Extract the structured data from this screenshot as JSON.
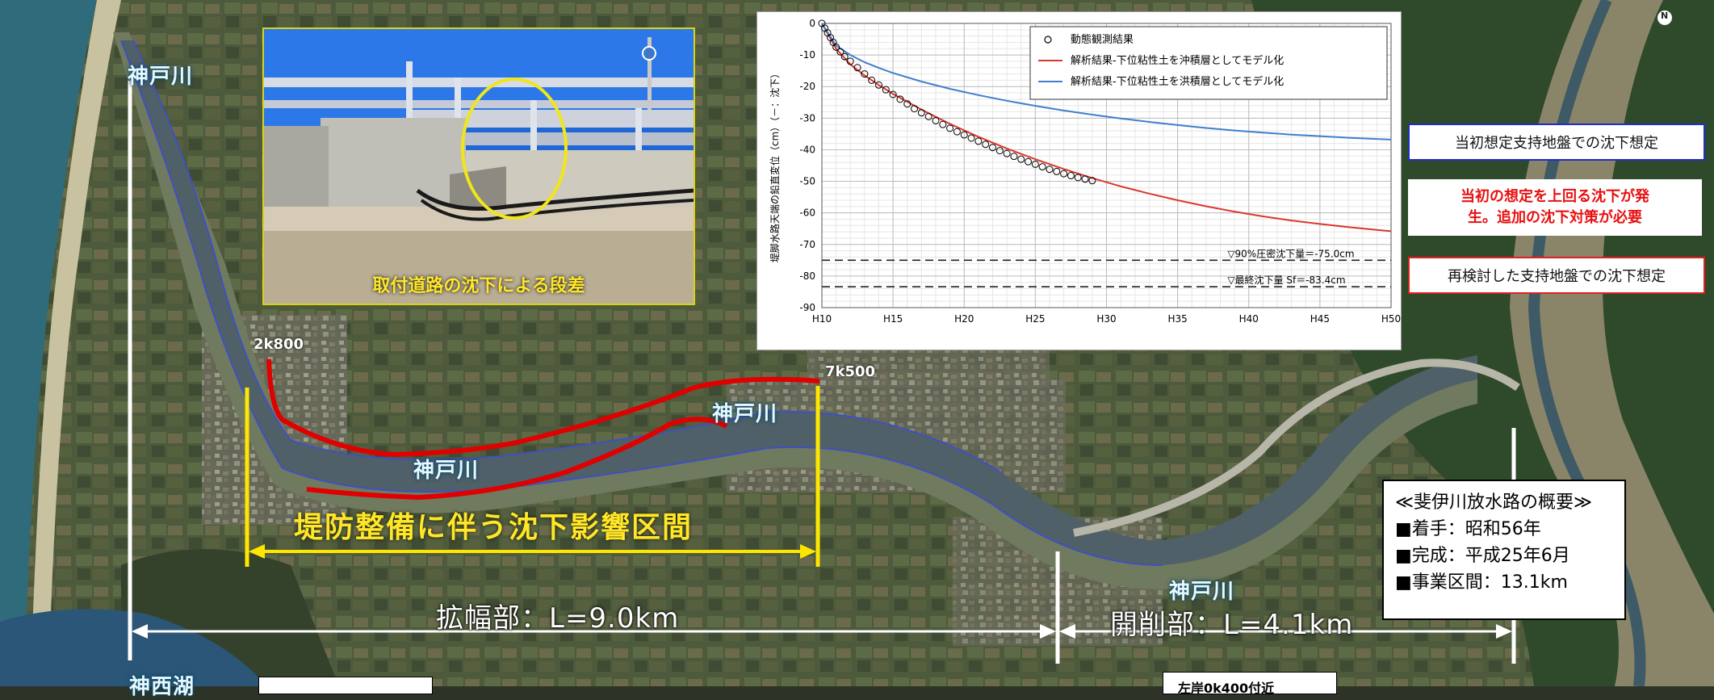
{
  "map": {
    "river_labels": [
      "神戸川",
      "神戸川",
      "神戸川",
      "神戸川"
    ],
    "lake_label": "神西湖",
    "km_start": "2k800",
    "km_end": "7k500",
    "zone_label": "堤防整備に伴う沈下影響区間",
    "widening_label": "拡幅部：L=9.0km",
    "cutting_label": "開削部：L=4.1km",
    "north_label": "N",
    "bottom_box_text": "左岸0k400付近"
  },
  "photo": {
    "caption": "取付道路の沈下による段差"
  },
  "callouts": {
    "initial": "当初想定支持地盤での沈下想定",
    "warning_line1": "当初の想定を上回る沈下が発",
    "warning_line2": "生。追加の沈下対策が必要",
    "revised": "再検討した支持地盤での沈下想定"
  },
  "overview": {
    "title": "≪斐伊川放水路の概要≫",
    "items": [
      "■着手：昭和56年",
      "■完成：平成25年6月",
      "■事業区間：13.1km"
    ]
  },
  "colors": {
    "embankment": "#e00000",
    "zone": "#ffe600",
    "observed": "#000000",
    "alluvial_model": "#d9382e",
    "diluvial_model": "#3f7fcf",
    "callout_blue": "#1f2ec8",
    "callout_red": "#e02020"
  },
  "chart_data": {
    "type": "scatter",
    "ylabel": "堤脚水路天端の鉛直変位（cm）（－：沈下）",
    "ylim": [
      -90,
      0
    ],
    "yticks": [
      0,
      -10,
      -20,
      -30,
      -40,
      -50,
      -60,
      -70,
      -80,
      -90
    ],
    "xticks": [
      "H10",
      "H15",
      "H20",
      "H25",
      "H30",
      "H35",
      "H40",
      "H45",
      "H50"
    ],
    "xlim": [
      10,
      50
    ],
    "legend": {
      "position": "top-right",
      "entries": [
        "動態観測結果",
        "解析結果-下位粘性土を沖積層としてモデル化",
        "解析結果-下位粘性土を洪積層としてモデル化"
      ]
    },
    "reference_lines": [
      {
        "label": "▽90%圧密沈下量＝-75.0cm",
        "y": -75.0
      },
      {
        "label": "▽最終沈下量 Sf＝-83.4cm",
        "y": -83.4
      }
    ],
    "series": [
      {
        "name": "動態観測結果",
        "kind": "scatter",
        "x": [
          10.0,
          10.2,
          10.4,
          10.6,
          10.8,
          11.0,
          11.3,
          11.6,
          12.0,
          12.5,
          13.0,
          13.5,
          14.0,
          14.5,
          15.0,
          15.5,
          16.0,
          16.5,
          17.0,
          17.5,
          18.0,
          18.5,
          19.0,
          19.5,
          20.0,
          20.5,
          21.0,
          21.5,
          22.0,
          22.5,
          23.0,
          23.5,
          24.0,
          24.5,
          25.0,
          25.5,
          26.0,
          26.5,
          27.0,
          27.5,
          28.0,
          28.5,
          29.0
        ],
        "y": [
          0,
          -1.5,
          -3,
          -4.5,
          -6,
          -7.5,
          -9,
          -10.5,
          -12,
          -14,
          -16,
          -18,
          -19.5,
          -21,
          -22.5,
          -24,
          -25.5,
          -27,
          -28.3,
          -29.5,
          -30.8,
          -32,
          -33.2,
          -34.3,
          -35.3,
          -36.3,
          -37.3,
          -38.3,
          -39.3,
          -40.3,
          -41.2,
          -42.1,
          -43,
          -43.8,
          -44.6,
          -45.4,
          -46.2,
          -46.9,
          -47.6,
          -48.2,
          -48.8,
          -49.3,
          -49.8
        ]
      },
      {
        "name": "解析結果-下位粘性土を沖積層としてモデル化",
        "kind": "line",
        "x": [
          10,
          11,
          12,
          13,
          14,
          15,
          17,
          19,
          21,
          23,
          25,
          27,
          29,
          31,
          33,
          35,
          37,
          39,
          41,
          43,
          45,
          47,
          49,
          50
        ],
        "y": [
          0,
          -8,
          -13,
          -16.5,
          -19.5,
          -22.3,
          -27.3,
          -31.8,
          -35.9,
          -39.6,
          -43,
          -46.1,
          -49,
          -51.6,
          -53.9,
          -56,
          -57.9,
          -59.6,
          -61.1,
          -62.4,
          -63.5,
          -64.5,
          -65.4,
          -65.8
        ]
      },
      {
        "name": "解析結果-下位粘性土を洪積層としてモデル化",
        "kind": "line",
        "x": [
          10,
          11,
          12,
          13,
          14,
          15,
          17,
          19,
          21,
          23,
          25,
          27,
          29,
          31,
          33,
          35,
          37,
          39,
          41,
          43,
          45,
          47,
          49,
          50
        ],
        "y": [
          0,
          -7,
          -10,
          -12.3,
          -14.1,
          -15.7,
          -18.4,
          -20.7,
          -22.7,
          -24.5,
          -26.1,
          -27.6,
          -28.9,
          -30.1,
          -31.2,
          -32.2,
          -33.1,
          -33.9,
          -34.6,
          -35.2,
          -35.7,
          -36.2,
          -36.6,
          -36.8
        ]
      }
    ]
  }
}
